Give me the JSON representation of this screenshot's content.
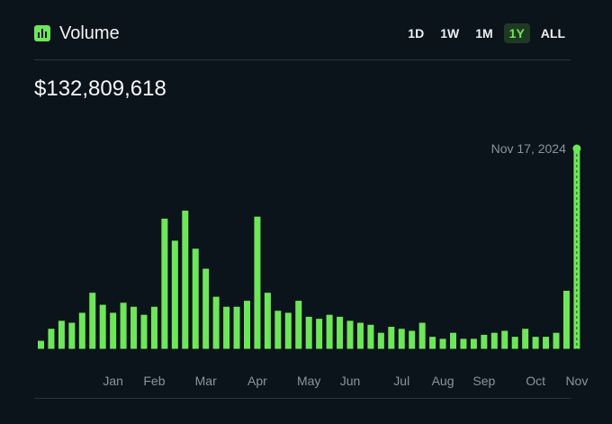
{
  "header": {
    "title": "Volume",
    "icon": "bar-chart-icon",
    "ranges": [
      "1D",
      "1W",
      "1M",
      "1Y",
      "ALL"
    ],
    "active_range": "1Y"
  },
  "total": "$132,809,618",
  "colors": {
    "accent": "#6ee65a",
    "background": "#0b131b",
    "muted": "#8d949b"
  },
  "chart_data": {
    "type": "bar",
    "title": "Volume",
    "xlabel": "",
    "ylabel": "",
    "grid": false,
    "ylim": [
      0,
      100
    ],
    "month_ticks": [
      {
        "label": "Jan",
        "index": 7
      },
      {
        "label": "Feb",
        "index": 11
      },
      {
        "label": "Mar",
        "index": 16
      },
      {
        "label": "Apr",
        "index": 21
      },
      {
        "label": "May",
        "index": 26
      },
      {
        "label": "Jun",
        "index": 30
      },
      {
        "label": "Jul",
        "index": 35
      },
      {
        "label": "Aug",
        "index": 39
      },
      {
        "label": "Sep",
        "index": 43
      },
      {
        "label": "Oct",
        "index": 48
      },
      {
        "label": "Nov",
        "index": 52
      }
    ],
    "values": [
      4,
      10,
      14,
      13,
      18,
      28,
      22,
      18,
      23,
      21,
      17,
      21,
      65,
      54,
      69,
      50,
      40,
      26,
      21,
      21,
      24,
      66,
      28,
      19,
      18,
      24,
      16,
      15,
      17,
      16,
      14,
      13,
      12,
      8,
      11,
      10,
      9,
      13,
      6,
      5,
      8,
      5,
      5,
      7,
      8,
      9,
      6,
      10,
      6,
      6,
      8,
      29,
      100
    ],
    "highlight": {
      "index": 52,
      "label": "Nov 17, 2024"
    }
  }
}
